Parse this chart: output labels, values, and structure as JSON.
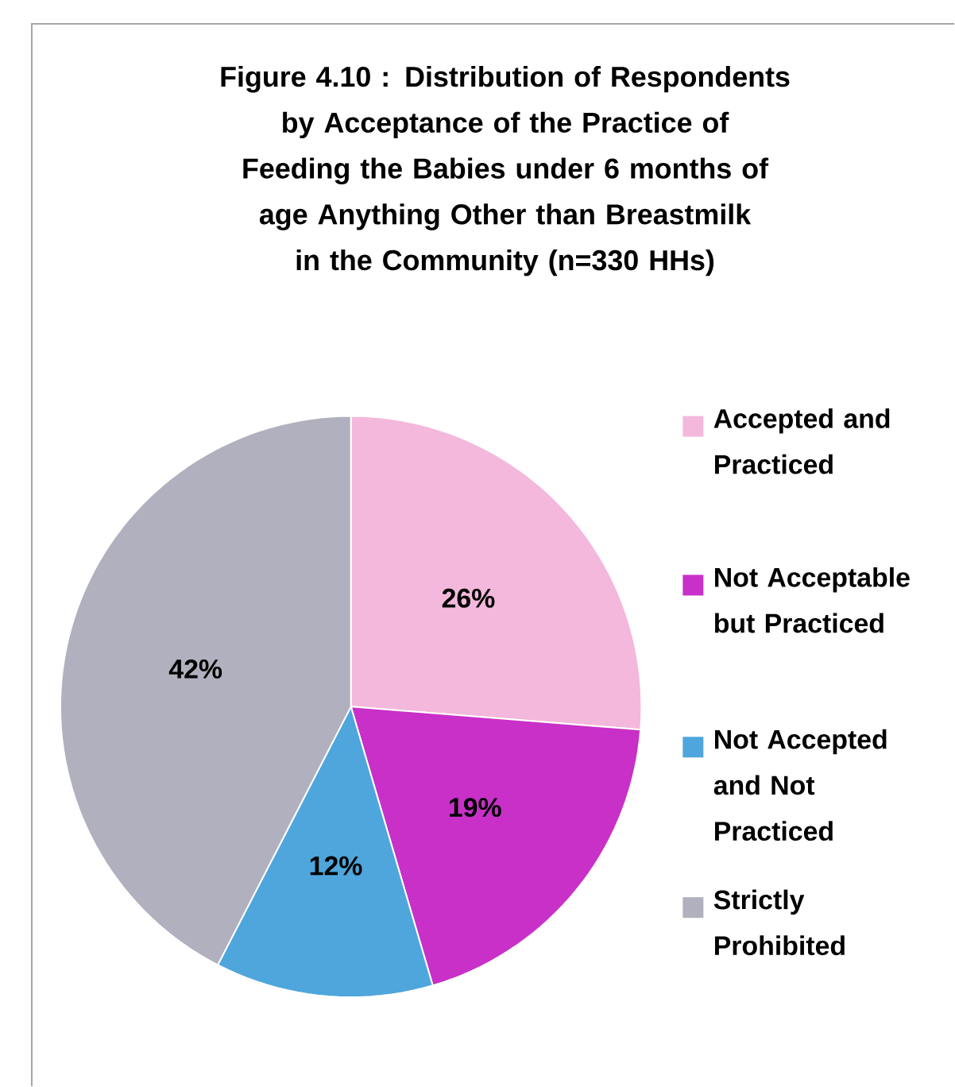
{
  "chart_data": {
    "type": "pie",
    "title": "Figure 4.10 : Distribution of Respondents by Acceptance of the Practice of Feeding the Babies under 6 months of age Anything Other than Breastmilk in the Community (n=330 HHs)",
    "categories": [
      "Accepted and Practiced",
      "Not Acceptable but Practiced",
      "Not Accepted and Not Practiced",
      "Strictly Prohibited"
    ],
    "values": [
      26,
      19,
      12,
      42
    ],
    "colors": [
      "#f4b8dc",
      "#c830c8",
      "#4ea6dc",
      "#b0b0be"
    ],
    "value_labels": [
      "26%",
      "19%",
      "12%",
      "42%"
    ],
    "legend": "right"
  }
}
